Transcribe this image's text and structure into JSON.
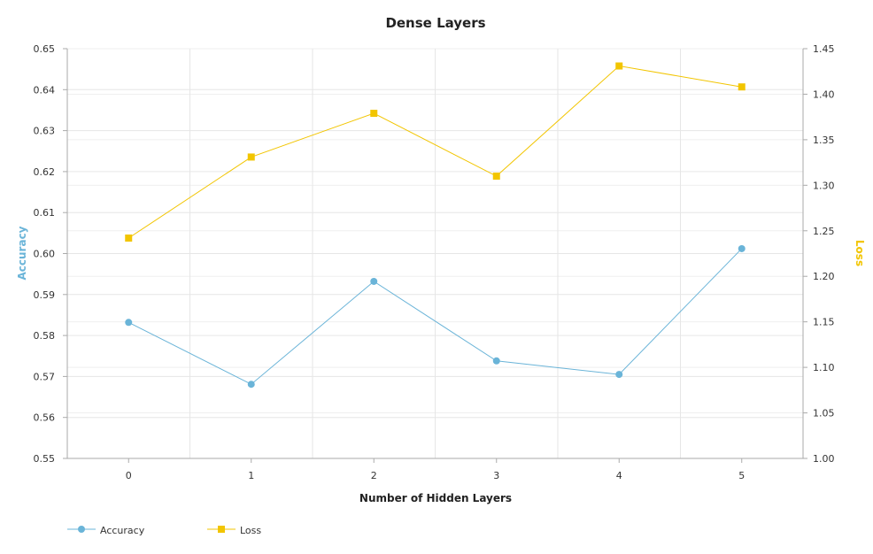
{
  "chart_data": {
    "type": "line",
    "title": "Dense Layers",
    "xlabel": "Number of Hidden Layers",
    "x": [
      0,
      1,
      2,
      3,
      4,
      5
    ],
    "xtick_labels": [
      "0",
      "1",
      "2",
      "3",
      "4",
      "5"
    ],
    "y_left": {
      "label": "Accuracy",
      "range": [
        0.55,
        0.65
      ],
      "ticks": [
        "0.55",
        "0.56",
        "0.57",
        "0.58",
        "0.59",
        "0.60",
        "0.61",
        "0.62",
        "0.63",
        "0.64",
        "0.65"
      ],
      "color": "#6ab4d8"
    },
    "y_right": {
      "label": "Loss",
      "range": [
        1.0,
        1.45
      ],
      "ticks": [
        "1.00",
        "1.05",
        "1.10",
        "1.15",
        "1.20",
        "1.25",
        "1.30",
        "1.35",
        "1.40",
        "1.45"
      ],
      "color": "#f2c500"
    },
    "series": [
      {
        "name": "Accuracy",
        "axis": "left",
        "marker": "circle",
        "color": "#6ab4d8",
        "values": [
          0.5832,
          0.5681,
          0.5932,
          0.5738,
          0.5705,
          0.6012
        ]
      },
      {
        "name": "Loss",
        "axis": "right",
        "marker": "square",
        "color": "#f2c500",
        "values": [
          1.242,
          1.331,
          1.379,
          1.31,
          1.431,
          1.408
        ]
      }
    ],
    "grid": true,
    "legend": "bottom-left"
  }
}
